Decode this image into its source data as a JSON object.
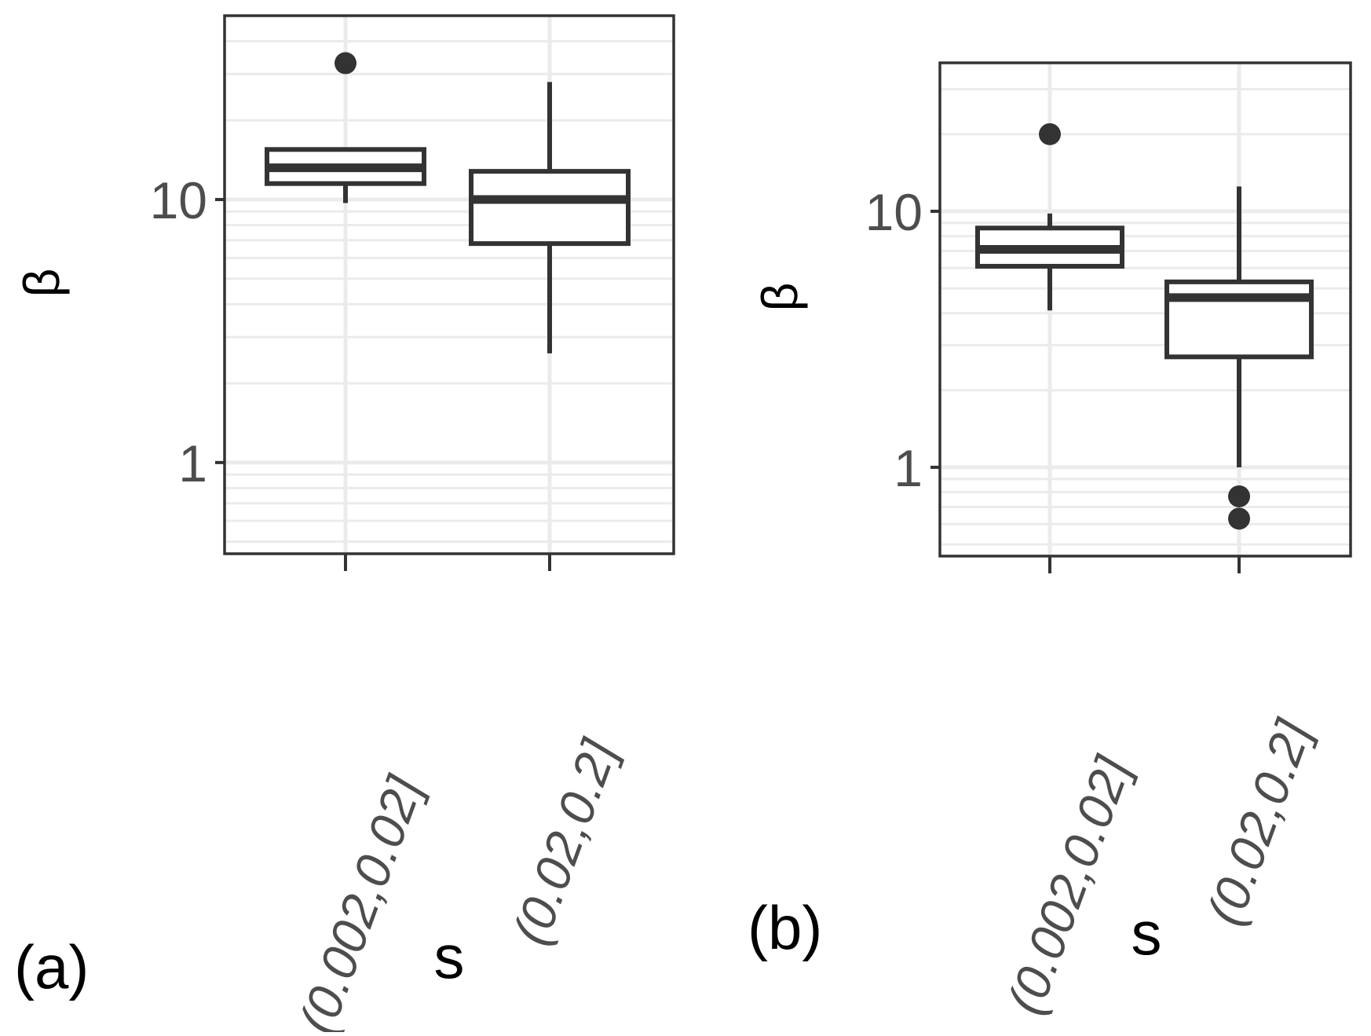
{
  "colors": {
    "background": "#ffffff",
    "panel_border": "#333333",
    "grid": "#ebebeb",
    "box": "#333333",
    "axis_text": "#4d4d4d",
    "label_text": "#000000"
  },
  "chart_data": [
    {
      "type": "box",
      "panel_label": "(a)",
      "xlabel": "s",
      "ylabel": "β",
      "y_scale": "log10",
      "ylim": [
        0.45,
        50
      ],
      "y_ticks": [
        1,
        10
      ],
      "y_tick_labels": [
        "1",
        "10"
      ],
      "grid": true,
      "legend": "none",
      "categories": [
        "(0.002,0.02]",
        "(0.02,0.2]"
      ],
      "boxes": [
        {
          "category": "(0.002,0.02]",
          "q1": 11.5,
          "median": 13.2,
          "q3": 15.5,
          "whisker_low": 9.7,
          "whisker_high": 15.5,
          "outliers": [
            33
          ]
        },
        {
          "category": "(0.02,0.2]",
          "q1": 6.8,
          "median": 10.0,
          "q3": 12.8,
          "whisker_low": 2.6,
          "whisker_high": 28,
          "outliers": []
        }
      ]
    },
    {
      "type": "box",
      "panel_label": "(b)",
      "xlabel": "s",
      "ylabel": "β",
      "y_scale": "log10",
      "ylim": [
        0.45,
        38
      ],
      "y_ticks": [
        1,
        10
      ],
      "y_tick_labels": [
        "1",
        "10"
      ],
      "grid": true,
      "legend": "none",
      "categories": [
        "(0.002,0.02]",
        "(0.02,0.2]"
      ],
      "boxes": [
        {
          "category": "(0.002,0.02]",
          "q1": 6.1,
          "median": 7.1,
          "q3": 8.6,
          "whisker_low": 4.1,
          "whisker_high": 9.8,
          "outliers": [
            20
          ]
        },
        {
          "category": "(0.02,0.2]",
          "q1": 2.7,
          "median": 4.6,
          "q3": 5.3,
          "whisker_low": 1.0,
          "whisker_high": 12.5,
          "outliers": [
            0.77,
            0.63
          ]
        }
      ]
    }
  ]
}
